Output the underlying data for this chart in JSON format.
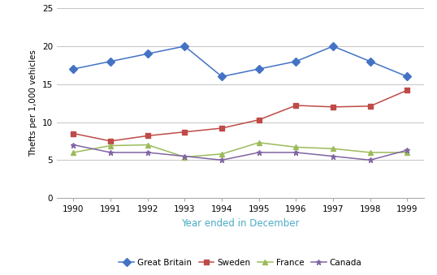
{
  "years": [
    1990,
    1991,
    1992,
    1993,
    1994,
    1995,
    1996,
    1997,
    1998,
    1999
  ],
  "great_britain": [
    17,
    18,
    19,
    20,
    16,
    17,
    18,
    20,
    18,
    16
  ],
  "sweden": [
    8.5,
    7.5,
    8.2,
    8.7,
    9.2,
    10.3,
    12.2,
    12.0,
    12.1,
    14.2
  ],
  "france": [
    6.0,
    6.9,
    7.0,
    5.4,
    5.8,
    7.3,
    6.7,
    6.5,
    6.0,
    6.0
  ],
  "canada": [
    7.0,
    6.0,
    6.0,
    5.5,
    5.0,
    6.0,
    6.0,
    5.5,
    5.0,
    6.3
  ],
  "colors": {
    "great_britain": "#4472C4",
    "sweden": "#BE4B48",
    "france": "#9BBB59",
    "canada": "#8064A2"
  },
  "markers": {
    "great_britain": "D",
    "sweden": "s",
    "france": "^",
    "canada": "*"
  },
  "ylabel": "Thefts per 1,000 vehicles",
  "xlabel": "Year ended in December",
  "xlabel_color": "#4BACC6",
  "ylim": [
    0,
    25
  ],
  "yticks": [
    0,
    5,
    10,
    15,
    20,
    25
  ],
  "legend_labels": [
    "Great Britain",
    "Sweden",
    "France",
    "Canada"
  ],
  "background_color": "#FFFFFF",
  "grid_color": "#BBBBBB"
}
